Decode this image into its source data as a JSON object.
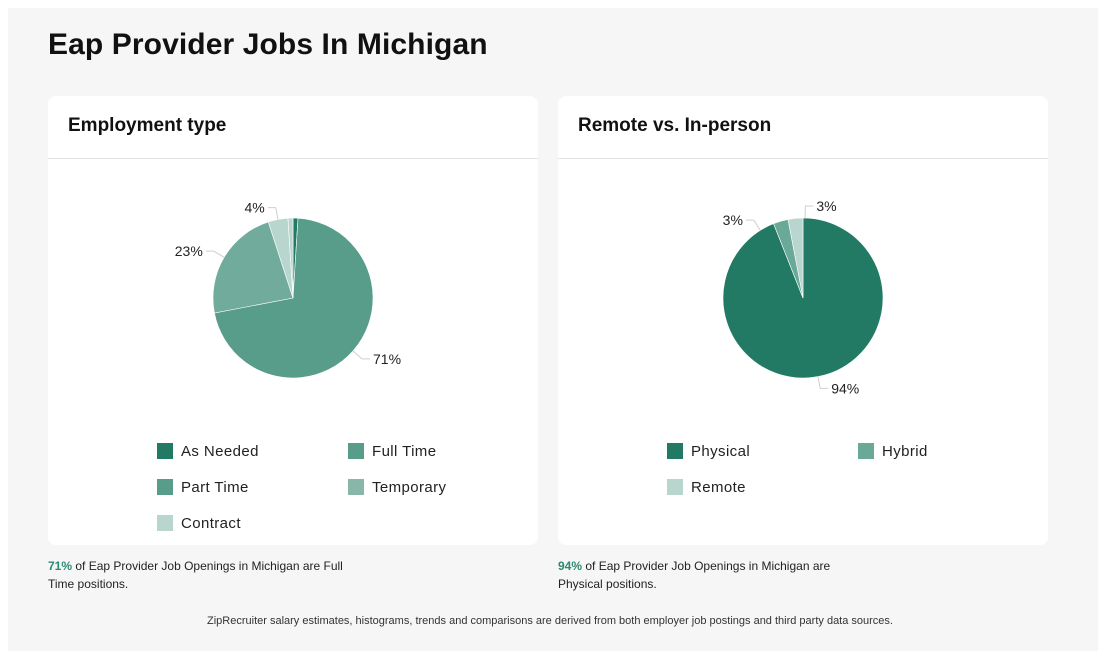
{
  "page": {
    "title": "Eap Provider Jobs In Michigan",
    "footnote": "ZipRecruiter salary estimates, histograms, trends and comparisons are derived from both employer job postings and third party data sources."
  },
  "cards": [
    {
      "title": "Employment type",
      "summary_pct": "71%",
      "summary_text": " of Eap Provider Job Openings in Michigan are Full Time positions."
    },
    {
      "title": "Remote vs. In-person",
      "summary_pct": "94%",
      "summary_text": " of Eap Provider Job Openings in Michigan are Physical positions."
    }
  ],
  "chart_data": [
    {
      "type": "pie",
      "title": "Employment type",
      "slices": [
        {
          "label": "As Needed",
          "value": 1,
          "color": "#237a64"
        },
        {
          "label": "Full Time",
          "value": 71,
          "color": "#589c8a"
        },
        {
          "label": "Part Time",
          "value": 23,
          "color": "#70ab9c"
        },
        {
          "label": "Temporary",
          "value": 4,
          "color": "#b9d6ce"
        },
        {
          "label": "Contract",
          "value": 1,
          "color": "#b9d6ce"
        }
      ],
      "data_labels": [
        "",
        "71%",
        "23%",
        "4%",
        ""
      ],
      "legend": [
        {
          "label": "As Needed",
          "color": "#237a64"
        },
        {
          "label": "Full Time",
          "color": "#589c8a"
        },
        {
          "label": "Part Time",
          "color": "#589c8a"
        },
        {
          "label": "Temporary",
          "color": "#88b7aa"
        },
        {
          "label": "Contract",
          "color": "#b9d6ce"
        }
      ]
    },
    {
      "type": "pie",
      "title": "Remote vs. In-person",
      "slices": [
        {
          "label": "Physical",
          "value": 94,
          "color": "#237a64"
        },
        {
          "label": "Hybrid",
          "value": 3,
          "color": "#6aa898"
        },
        {
          "label": "Remote",
          "value": 3,
          "color": "#b9d6ce"
        }
      ],
      "data_labels": [
        "94%",
        "3%",
        "3%"
      ],
      "legend": [
        {
          "label": "Physical",
          "color": "#237a64"
        },
        {
          "label": "Hybrid",
          "color": "#6aa898"
        },
        {
          "label": "Remote",
          "color": "#b9d6ce"
        }
      ]
    }
  ]
}
